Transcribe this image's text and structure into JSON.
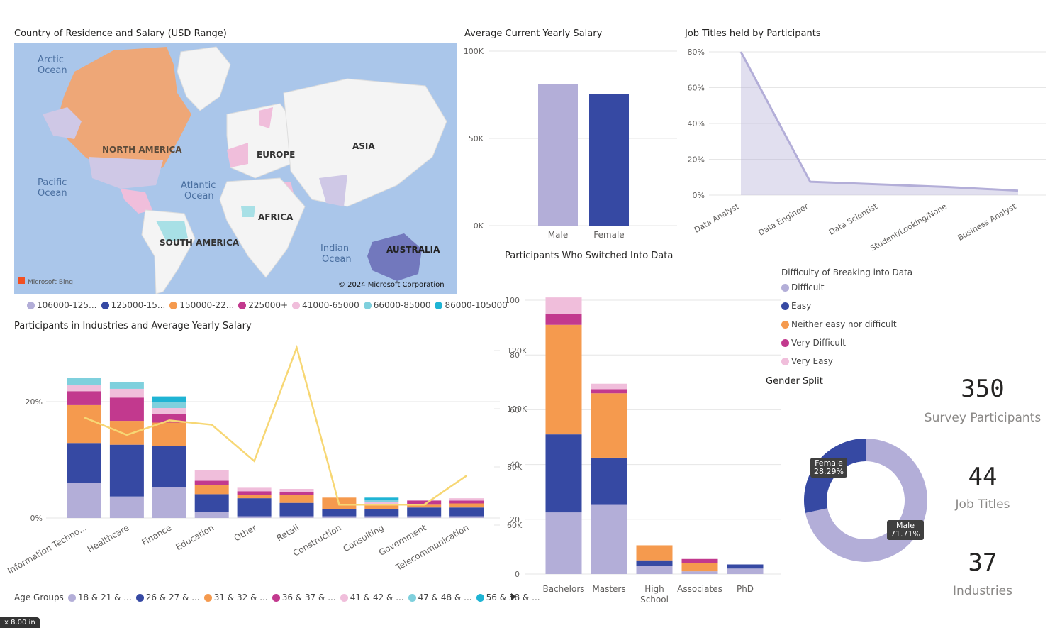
{
  "colors": {
    "lavender": "#b3aed8",
    "navy": "#3649a3",
    "orange": "#f59a4e",
    "magenta": "#c2398e",
    "pink": "#f0bedb",
    "lightblue": "#7fd0dd",
    "cyan": "#1fb4d4",
    "line_yellow": "#f7d774",
    "ocean": "#aac6ea"
  },
  "map": {
    "title": "Country of Residence and Salary (USD Range)",
    "labels": {
      "arctic": "Arctic Ocean",
      "north_america": "NORTH AMERICA",
      "europe": "EUROPE",
      "asia": "ASIA",
      "pacific": "Pacific Ocean",
      "atlantic": "Atlantic Ocean",
      "africa": "AFRICA",
      "south_america": "SOUTH AMERICA",
      "indian": "Indian Ocean",
      "australia": "AUSTRALIA"
    },
    "bing_logo": "Microsoft Bing",
    "copyright": "© 2024 Microsoft Corporation",
    "legend": [
      {
        "label": "106000-125...",
        "color": "#b3aed8"
      },
      {
        "label": "125000-15...",
        "color": "#3649a3"
      },
      {
        "label": "150000-22...",
        "color": "#f59a4e"
      },
      {
        "label": "225000+",
        "color": "#c2398e"
      },
      {
        "label": "41000-65000",
        "color": "#f0bedb"
      },
      {
        "label": "66000-85000",
        "color": "#7fd0dd"
      },
      {
        "label": "86000-105000",
        "color": "#1fb4d4"
      }
    ]
  },
  "salary_chart": {
    "title": "Average Current Yearly Salary",
    "chart_data": {
      "type": "bar",
      "categories": [
        "Male",
        "Female"
      ],
      "values": [
        81000,
        75500
      ],
      "ylim": [
        0,
        100000
      ],
      "ytick_labels": [
        "0K",
        "50K",
        "100K"
      ],
      "colors": [
        "#b3aed8",
        "#3649a3"
      ]
    }
  },
  "jobs_chart": {
    "title": "Job Titles held by Participants",
    "chart_data": {
      "type": "area",
      "categories": [
        "Data Analyst",
        "Data Engineer",
        "Data Scientist",
        "Student/Looking/None",
        "Business Analyst"
      ],
      "values": [
        80,
        7.5,
        6,
        4.5,
        2.5
      ],
      "ylim": [
        0,
        80
      ],
      "ytick_labels": [
        "0%",
        "20%",
        "40%",
        "60%",
        "80%"
      ]
    }
  },
  "industries_chart": {
    "title": "Participants in Industries and Average Yearly Salary",
    "chart_data": {
      "type": "bar",
      "categories": [
        "Information Techno...",
        "Healthcare",
        "Finance",
        "Education",
        "Other",
        "Retail",
        "Construction",
        "Consulting",
        "Government",
        "Telecommunication"
      ],
      "series": [
        {
          "name": "18 & 21 & ...",
          "values": [
            6.0,
            3.7,
            5.3,
            1.0,
            0.3,
            0.3,
            0.3,
            0.3,
            0.3,
            0.3
          ]
        },
        {
          "name": "26 & 27 & ...",
          "values": [
            6.9,
            8.9,
            7.1,
            3.1,
            3.1,
            2.3,
            1.2,
            1.2,
            1.5,
            1.5
          ]
        },
        {
          "name": "31 & 32 & ...",
          "values": [
            6.5,
            4.1,
            4.0,
            1.6,
            0.6,
            1.4,
            2.0,
            0.7,
            0.6,
            0.7
          ]
        },
        {
          "name": "36 & 37 & ...",
          "values": [
            2.4,
            4.0,
            1.5,
            0.7,
            0.6,
            0.4,
            0.0,
            0.0,
            0.6,
            0.5
          ]
        },
        {
          "name": "41 & 42 & ...",
          "values": [
            1.0,
            1.5,
            1.0,
            1.8,
            0.6,
            0.6,
            0.0,
            0.6,
            0.0,
            0.4
          ]
        },
        {
          "name": "47 & 48 & ...",
          "values": [
            1.3,
            1.2,
            1.1,
            0.0,
            0.0,
            0.0,
            0.0,
            0.3,
            0.0,
            0.0
          ]
        },
        {
          "name": "56 & 58 & ...",
          "values": [
            0.0,
            0.0,
            0.9,
            0.0,
            0.0,
            0.0,
            0.0,
            0.4,
            0.0,
            0.0
          ]
        }
      ],
      "line": {
        "values": [
          97000,
          91000,
          96000,
          94500,
          82000,
          121000,
          67000,
          67000,
          67000,
          77000
        ]
      },
      "ylim": [
        0,
        24
      ],
      "ytick_labels": [
        "0%",
        "20%"
      ],
      "y2_ticks": [
        "60K",
        "80K",
        "100K",
        "120K"
      ],
      "y2lim": [
        60000,
        125000
      ],
      "legend_title": "Age Groups"
    }
  },
  "switched_chart": {
    "title": "Participants Who Switched Into Data",
    "chart_data": {
      "type": "bar",
      "categories": [
        "Bachelors",
        "Masters",
        "High School",
        "Associates",
        "PhD"
      ],
      "series": [
        {
          "name": "Difficult",
          "values": [
            22.5,
            25.5,
            3,
            1,
            2
          ]
        },
        {
          "name": "Easy",
          "values": [
            28.5,
            17,
            2,
            0,
            1.5
          ]
        },
        {
          "name": "Neither easy nor difficult",
          "values": [
            40,
            23.5,
            5.5,
            3,
            0
          ]
        },
        {
          "name": "Very Difficult",
          "values": [
            4,
            1.5,
            0,
            1.5,
            0
          ]
        },
        {
          "name": "Very Easy",
          "values": [
            6,
            2,
            0,
            0,
            0
          ]
        }
      ],
      "ylim": [
        0,
        100
      ],
      "ytick_labels": [
        "0",
        "20",
        "40",
        "60",
        "80",
        "100"
      ],
      "legend_title": "Difficulty of Breaking into Data"
    }
  },
  "gender_chart": {
    "title": "Gender Split",
    "chart_data": {
      "type": "pie",
      "categories": [
        "Male",
        "Female"
      ],
      "values": [
        71.71,
        28.29
      ],
      "labels": [
        "71.71%",
        "28.29%"
      ]
    }
  },
  "kpis": [
    {
      "value": "350",
      "label": "Survey Participants"
    },
    {
      "value": "44",
      "label": "Job Titles"
    },
    {
      "value": "37",
      "label": "Industries"
    }
  ],
  "status": {
    "size_badge": "x 8.00 in"
  }
}
